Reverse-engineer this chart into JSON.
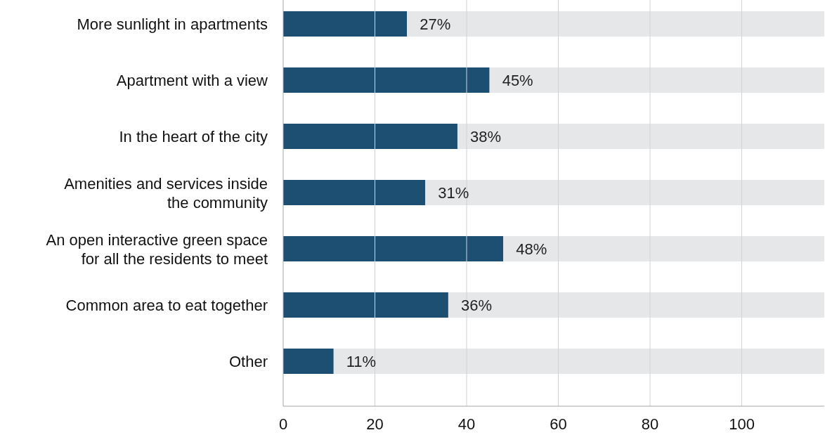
{
  "chart_data": {
    "type": "bar",
    "orientation": "horizontal",
    "stacked": true,
    "categories": [
      "More sunlight in apartments",
      "Apartment with a view",
      "In the heart of the city",
      "Amenities and services inside the community",
      "An open interactive green space for all the residents to meet",
      "Common area to eat together",
      "Other"
    ],
    "series": [
      {
        "color": "#1d4f73",
        "values": [
          27,
          45,
          38,
          31,
          48,
          36,
          11
        ],
        "value_labels": [
          "27%",
          "45%",
          "38%",
          "31%",
          "48%",
          "36%",
          "11%"
        ]
      },
      {
        "color": "#e6e7e9",
        "values": [
          91,
          73,
          80,
          87,
          70,
          82,
          107
        ]
      }
    ],
    "xlim": [
      0,
      118
    ],
    "xticks": [
      0,
      20,
      40,
      60,
      80,
      100
    ],
    "grid": "x"
  }
}
